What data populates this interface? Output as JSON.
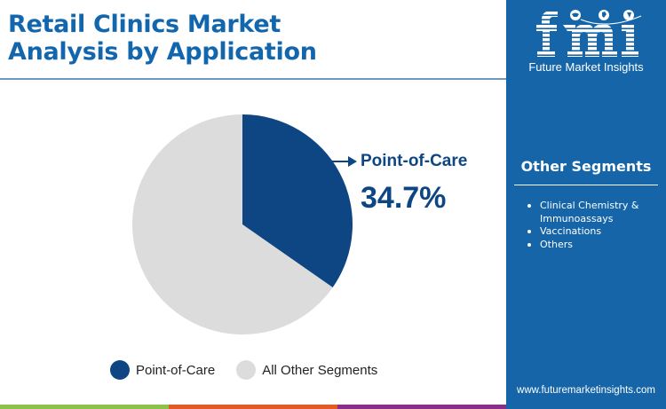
{
  "header": {
    "title_line1": "Retail Clinics Market",
    "title_line2": "Analysis by Application"
  },
  "callout": {
    "label": "Point-of-Care",
    "value": "34.7%"
  },
  "legend": [
    {
      "label": "Point-of-Care",
      "color": "#0e4683"
    },
    {
      "label": "All Other Segments",
      "color": "#dcdcdc"
    }
  ],
  "side_panel": {
    "logo_text": "fmi",
    "logo_subtitle": "Future Market Insights",
    "heading": "Other Segments",
    "items": [
      "Clinical Chemistry & Immunoassays",
      "Vaccinations",
      "Others"
    ],
    "website": "www.futuremarketinsights.com",
    "background_color": "#1565a8"
  },
  "bottom_bar_colors": [
    "#8bc34a",
    "#e45a26",
    "#8a2f87"
  ],
  "chart_data": {
    "type": "pie",
    "title": "Retail Clinics Market Analysis by Application",
    "categories": [
      "Point-of-Care",
      "All Other Segments"
    ],
    "values": [
      34.7,
      65.3
    ],
    "colors": [
      "#0e4683",
      "#dcdcdc"
    ],
    "start_angle_deg": 90,
    "direction": "clockwise",
    "annotations": [
      {
        "label": "Point-of-Care",
        "value": "34.7%"
      }
    ],
    "legend_position": "bottom"
  }
}
